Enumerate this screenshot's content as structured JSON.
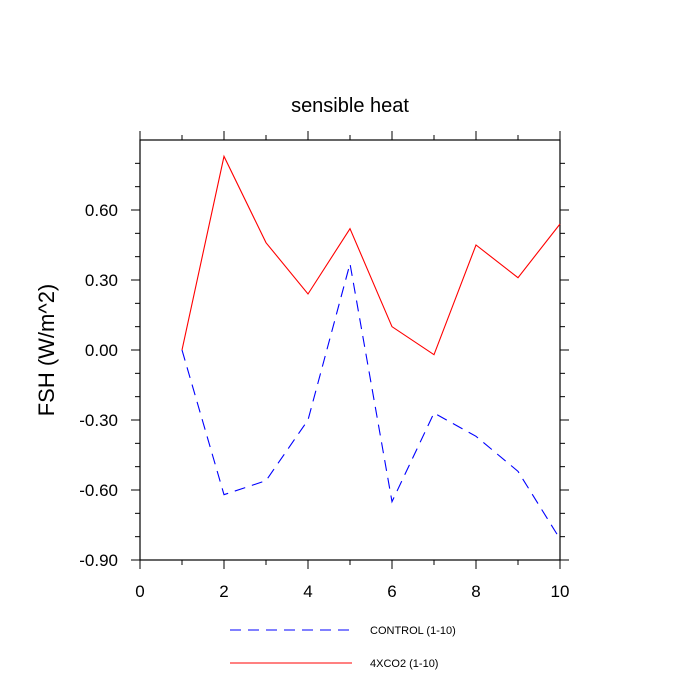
{
  "chart_data": {
    "type": "line",
    "title": "sensible heat",
    "xlabel": "",
    "ylabel": "FSH  (W/m^2)",
    "xlim": [
      0,
      10
    ],
    "ylim": [
      -0.9,
      0.9
    ],
    "x_ticks": [
      0,
      2,
      4,
      6,
      8,
      10
    ],
    "x_tick_labels": [
      "0",
      "2",
      "4",
      "6",
      "8",
      "10"
    ],
    "y_ticks": [
      -0.9,
      -0.6,
      -0.3,
      0.0,
      0.3,
      0.6
    ],
    "y_tick_labels": [
      "-0.90",
      "-0.60",
      "-0.30",
      "0.00",
      "0.30",
      "0.60"
    ],
    "grid": false,
    "legend_position": "bottom",
    "x": [
      1,
      2,
      3,
      4,
      5,
      6,
      7,
      8,
      9,
      10
    ],
    "series": [
      {
        "name": "CONTROL (1-10)",
        "color": "#0000ff",
        "style": "dashed",
        "values": [
          0.0,
          -0.62,
          -0.56,
          -0.3,
          0.37,
          -0.65,
          -0.27,
          -0.37,
          -0.52,
          -0.81
        ]
      },
      {
        "name": "4XCO2 (1-10)",
        "color": "#ff0000",
        "style": "solid",
        "values": [
          0.0,
          0.83,
          0.46,
          0.24,
          0.52,
          0.1,
          -0.02,
          0.45,
          0.31,
          0.54
        ]
      }
    ]
  }
}
